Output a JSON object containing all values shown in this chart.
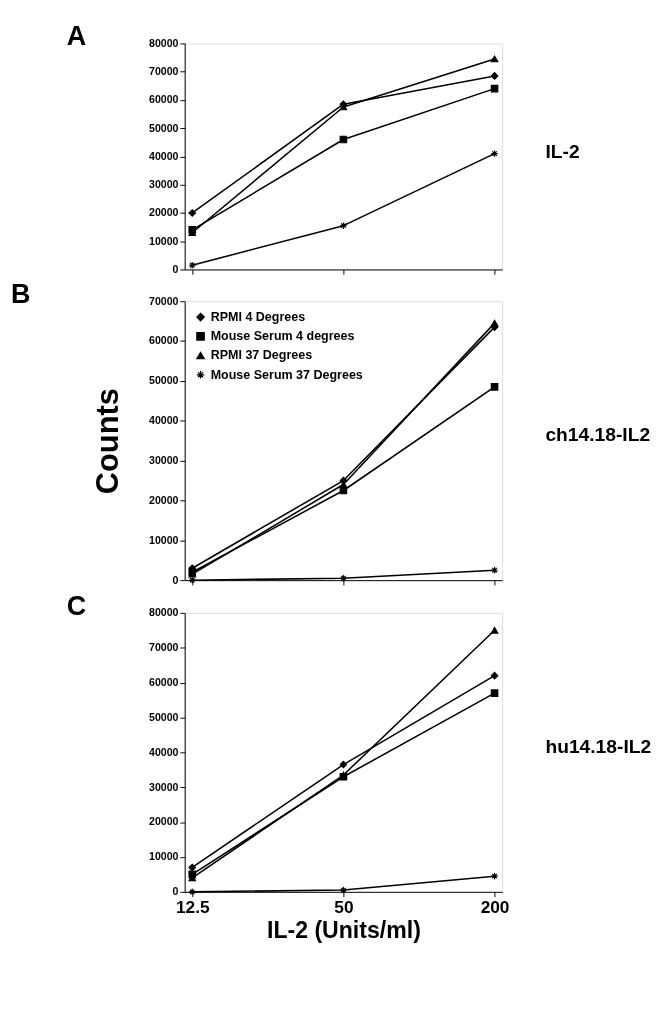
{
  "chart_data": [
    {
      "type": "line",
      "title": "A",
      "categories": [
        "12.5",
        "50",
        "200"
      ],
      "ylim": [
        0,
        80000
      ],
      "yticks": [
        0,
        10000,
        20000,
        30000,
        40000,
        50000,
        60000,
        70000,
        80000
      ],
      "grid": false,
      "legend": false,
      "tick_labels": "y",
      "annotations": [
        "IL-2"
      ],
      "series": [
        {
          "color": "#000000",
          "marker": "diamond",
          "values": [
            20000,
            58500,
            68500
          ]
        },
        {
          "color": "#000000",
          "marker": "square",
          "values": [
            14000,
            46000,
            64000
          ]
        },
        {
          "color": "#000000",
          "marker": "triangle",
          "values": [
            13000,
            57500,
            74500
          ]
        },
        {
          "color": "#000000",
          "marker": "cross",
          "values": [
            1500,
            15500,
            41000
          ]
        }
      ]
    },
    {
      "type": "line",
      "title": "B",
      "ylabel": "Counts",
      "categories": [
        "12.5",
        "50",
        "200"
      ],
      "ylim": [
        0,
        70000
      ],
      "yticks": [
        0,
        10000,
        20000,
        30000,
        40000,
        50000,
        60000,
        70000
      ],
      "grid": false,
      "legend": "top left",
      "tick_labels": "y",
      "annotations": [
        "ch14.18-IL2"
      ],
      "series": [
        {
          "name": "RPMI 4 Degrees",
          "color": "#000000",
          "marker": "diamond",
          "values": [
            3000,
            25000,
            63500
          ]
        },
        {
          "name": "Mouse Serum 4 degrees",
          "color": "#000000",
          "marker": "square",
          "values": [
            2000,
            22500,
            48500
          ]
        },
        {
          "name": "RPMI 37 Degrees",
          "color": "#000000",
          "marker": "triangle",
          "values": [
            1500,
            24000,
            64500
          ]
        },
        {
          "name": "Mouse Serum 37 Degrees",
          "color": "#000000",
          "marker": "cross",
          "values": [
            0,
            500,
            2500
          ]
        }
      ]
    },
    {
      "type": "line",
      "title": "C",
      "xlabel": "IL-2 (Units/ml)",
      "categories": [
        "12.5",
        "50",
        "200"
      ],
      "ylim": [
        0,
        80000
      ],
      "yticks": [
        0,
        10000,
        20000,
        30000,
        40000,
        50000,
        60000,
        70000,
        80000
      ],
      "grid": false,
      "legend": false,
      "annotations": [
        "hu14.18-IL2"
      ],
      "series": [
        {
          "color": "#000000",
          "marker": "diamond",
          "values": [
            7000,
            36500,
            62000
          ]
        },
        {
          "color": "#000000",
          "marker": "square",
          "values": [
            5000,
            33000,
            57000
          ]
        },
        {
          "color": "#000000",
          "marker": "triangle",
          "values": [
            4000,
            33500,
            75000
          ]
        },
        {
          "color": "#000000",
          "marker": "cross",
          "values": [
            0,
            500,
            4500
          ]
        }
      ]
    }
  ]
}
